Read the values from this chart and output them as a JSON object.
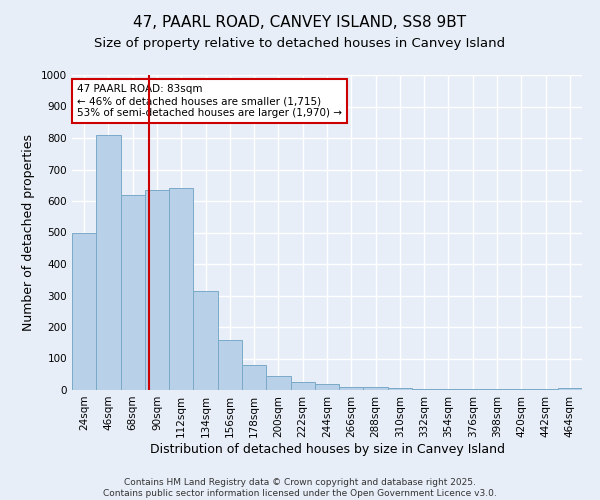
{
  "title": "47, PAARL ROAD, CANVEY ISLAND, SS8 9BT",
  "subtitle": "Size of property relative to detached houses in Canvey Island",
  "xlabel": "Distribution of detached houses by size in Canvey Island",
  "ylabel": "Number of detached properties",
  "bar_color": "#b8d0e8",
  "bar_edge_color": "#7aaac8",
  "categories": [
    "24sqm",
    "46sqm",
    "68sqm",
    "90sqm",
    "112sqm",
    "134sqm",
    "156sqm",
    "178sqm",
    "200sqm",
    "222sqm",
    "244sqm",
    "266sqm",
    "288sqm",
    "310sqm",
    "332sqm",
    "354sqm",
    "376sqm",
    "398sqm",
    "420sqm",
    "442sqm",
    "464sqm"
  ],
  "values": [
    500,
    810,
    620,
    635,
    640,
    315,
    160,
    80,
    45,
    25,
    20,
    10,
    8,
    5,
    4,
    4,
    3,
    3,
    2,
    2,
    5
  ],
  "ylim": [
    0,
    1000
  ],
  "yticks": [
    0,
    100,
    200,
    300,
    400,
    500,
    600,
    700,
    800,
    900,
    1000
  ],
  "vline_x": 2.68,
  "vline_color": "#cc0000",
  "annotation_text": "47 PAARL ROAD: 83sqm\n← 46% of detached houses are smaller (1,715)\n53% of semi-detached houses are larger (1,970) →",
  "annotation_box_color": "#cc0000",
  "background_color": "#e8eef8",
  "plot_bg_color": "#e8eef8",
  "footer_text": "Contains HM Land Registry data © Crown copyright and database right 2025.\nContains public sector information licensed under the Open Government Licence v3.0.",
  "grid_color": "#ffffff",
  "title_fontsize": 11,
  "subtitle_fontsize": 9.5,
  "axis_label_fontsize": 9,
  "tick_fontsize": 7.5,
  "ann_fontsize": 7.5,
  "footer_fontsize": 6.5
}
